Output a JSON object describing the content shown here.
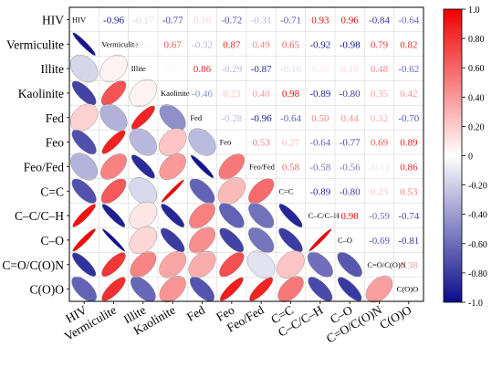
{
  "chart_data": {
    "type": "heatmap",
    "variables": [
      "HIV",
      "Vermiculite",
      "Illite",
      "Kaolinite",
      "Fed",
      "Feo",
      "Feo/Fed",
      "C=C",
      "C–C/C–H",
      "C–O",
      "C=O/C(O)N",
      "C(O)O"
    ],
    "x_labels": [
      "HIV",
      "Vermiculite",
      "Illite",
      "Kaolinite",
      "Fed",
      "Feo",
      "Feo/Fed",
      "C=C",
      "C–C/C–H",
      "C–O",
      "C=O/C(O)N",
      "C(O)O"
    ],
    "y_labels": [
      "HIV",
      "Vermiculite",
      "Illite",
      "Kaolinite",
      "Fed",
      "Feo",
      "Feo/Fed",
      "C=C",
      "C–C/C–H",
      "C–O",
      "C=O/C(O)N",
      "C(O)O"
    ],
    "diagonal_labels": [
      "HIV",
      "Vermiculite",
      "Illite",
      "Kaolinite",
      "Fed",
      "Feo",
      "Feo/Fed",
      "C=C",
      "C–C/C–H",
      "C–O",
      "C=O/C(O)N",
      "C(O)O"
    ],
    "upper_labels": [
      [
        "",
        "-0.96",
        "-0.17",
        "-0.77",
        "0.18",
        "-0.72",
        "-0.31",
        "-0.71",
        "0.93",
        "0.96",
        "-0.84",
        "-0.64"
      ],
      [
        "",
        "",
        "0.05",
        "0.67",
        "-0.32",
        "0.87",
        "0.49",
        "0.65",
        "-0.92",
        "-0.98",
        "0.79",
        "0.82"
      ],
      [
        "",
        "",
        "",
        "0.05",
        "0.86",
        "-0.29",
        "-0.87",
        "-0.16",
        "0.10",
        "0.16",
        "0.48",
        "-0.62"
      ],
      [
        "",
        "",
        "",
        "",
        "-0.46",
        "0.23",
        "0.40",
        "0.98",
        "-0.89",
        "-0.80",
        "0.35",
        "0.42"
      ],
      [
        "",
        "",
        "",
        "",
        "",
        "-0.28",
        "-0.96",
        "-0.64",
        "0.50",
        "0.44",
        "0.32",
        "-0.70"
      ],
      [
        "",
        "",
        "",
        "",
        "",
        "",
        "0.53",
        "0.27",
        "-0.64",
        "-0.77",
        "0.69",
        "0.89"
      ],
      [
        "",
        "",
        "",
        "",
        "",
        "",
        "",
        "0.58",
        "-0.58",
        "-0.56",
        "-0.12",
        "0.86"
      ],
      [
        "",
        "",
        "",
        "",
        "",
        "",
        "",
        "",
        "-0.89",
        "-0.80",
        "0.23",
        "0.53"
      ],
      [
        "",
        "",
        "",
        "",
        "",
        "",
        "",
        "",
        "",
        "0.98",
        "-0.59",
        "-0.74"
      ],
      [
        "",
        "",
        "",
        "",
        "",
        "",
        "",
        "",
        "",
        "",
        "-0.69",
        "-0.81"
      ],
      [
        "",
        "",
        "",
        "",
        "",
        "",
        "",
        "",
        "",
        "",
        "",
        "0.38"
      ],
      [
        "",
        "",
        "",
        "",
        "",
        "",
        "",
        "",
        "",
        "",
        "",
        ""
      ]
    ],
    "correlation_matrix": [
      [
        1.0,
        -0.96,
        -0.17,
        -0.77,
        0.18,
        -0.72,
        -0.31,
        -0.71,
        0.93,
        0.96,
        -0.84,
        -0.64
      ],
      [
        -0.96,
        1.0,
        0.05,
        0.67,
        -0.32,
        0.87,
        0.49,
        0.65,
        -0.92,
        -0.98,
        0.79,
        0.82
      ],
      [
        -0.17,
        0.05,
        1.0,
        0.05,
        0.86,
        -0.29,
        -0.87,
        -0.16,
        0.1,
        0.16,
        0.48,
        -0.62
      ],
      [
        -0.77,
        0.67,
        0.05,
        1.0,
        -0.46,
        0.23,
        0.4,
        0.98,
        -0.89,
        -0.8,
        0.35,
        0.42
      ],
      [
        0.18,
        -0.32,
        0.86,
        -0.46,
        1.0,
        -0.28,
        -0.96,
        -0.64,
        0.5,
        0.44,
        0.32,
        -0.7
      ],
      [
        -0.72,
        0.87,
        -0.29,
        0.23,
        -0.28,
        1.0,
        0.53,
        0.27,
        -0.64,
        -0.77,
        0.69,
        0.89
      ],
      [
        -0.31,
        0.49,
        -0.87,
        0.4,
        -0.96,
        0.53,
        1.0,
        0.58,
        -0.58,
        -0.56,
        -0.12,
        0.86
      ],
      [
        -0.71,
        0.65,
        -0.16,
        0.98,
        -0.64,
        0.27,
        0.58,
        1.0,
        -0.89,
        -0.8,
        0.23,
        0.53
      ],
      [
        0.93,
        -0.92,
        0.1,
        -0.89,
        0.5,
        -0.64,
        -0.58,
        -0.89,
        1.0,
        0.98,
        -0.59,
        -0.74
      ],
      [
        0.96,
        -0.98,
        0.16,
        -0.8,
        0.44,
        -0.77,
        -0.56,
        -0.8,
        0.98,
        1.0,
        -0.69,
        -0.81
      ],
      [
        -0.84,
        0.79,
        0.48,
        0.35,
        0.32,
        0.69,
        -0.12,
        0.23,
        -0.59,
        -0.69,
        1.0,
        0.38
      ],
      [
        -0.64,
        0.82,
        -0.62,
        0.42,
        -0.7,
        0.89,
        0.86,
        0.53,
        -0.74,
        -0.81,
        0.38,
        1.0
      ]
    ],
    "lower_triangle": "ellipses",
    "upper_triangle": "coefficients",
    "color_scale": {
      "min": -1.0,
      "max": 1.0,
      "low_color": "#0b0b8c",
      "mid_color": "#ffffff",
      "high_color": "#f00000",
      "ticks": [
        "1.0",
        "0.80",
        "0.60",
        "0.40",
        "0.20",
        "0",
        "-0.20",
        "-0.40",
        "-0.60",
        "-0.80",
        "-1.0"
      ]
    },
    "colors": {
      "frame": "#000000",
      "grid": "#cfcfcf",
      "ellipse_stroke": "#888888"
    }
  }
}
